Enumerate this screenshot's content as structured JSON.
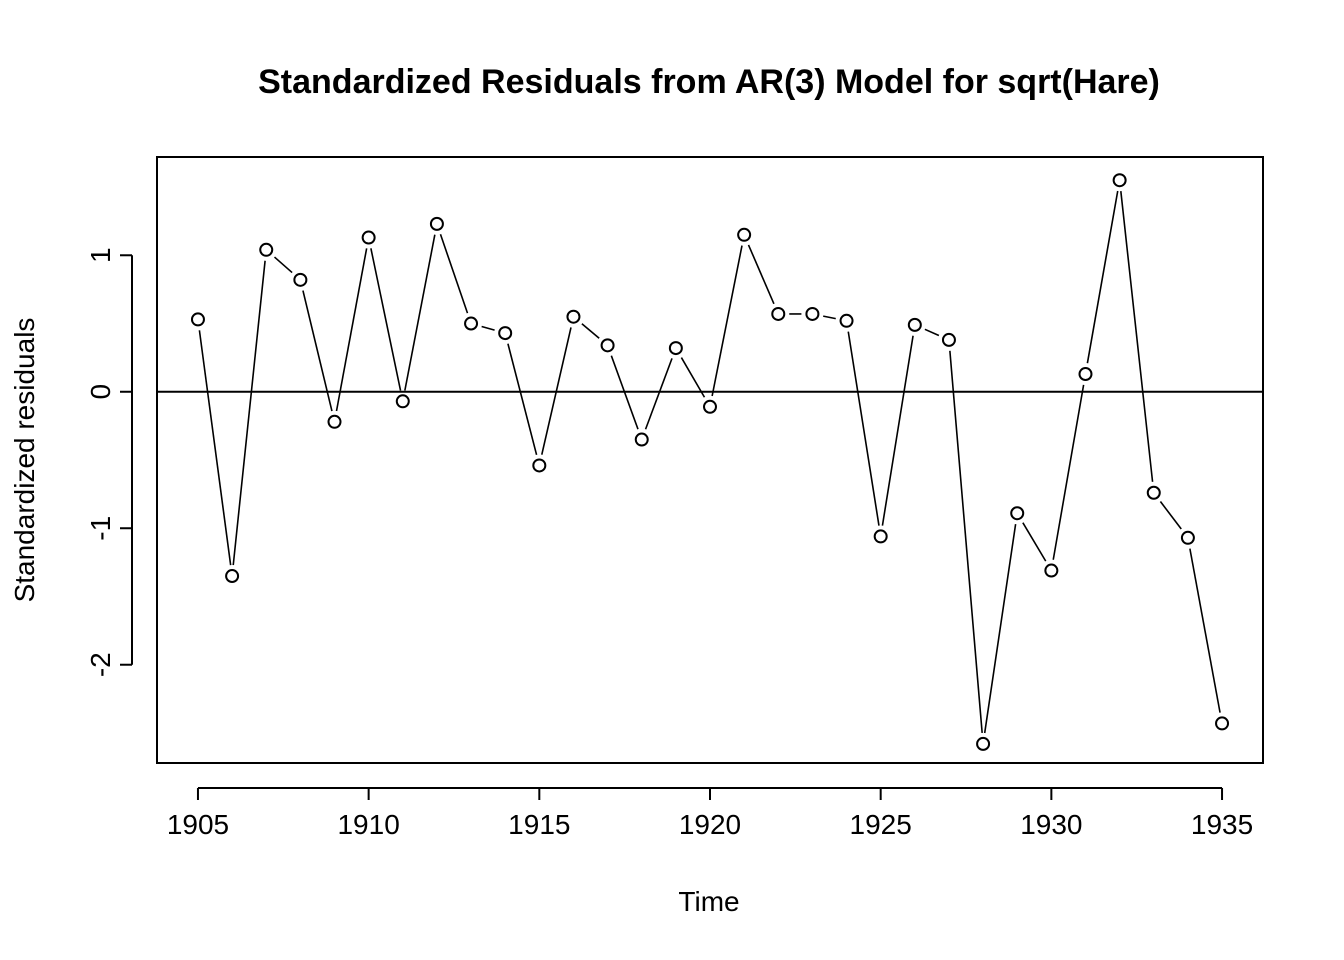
{
  "chart_data": {
    "type": "line",
    "title": "Standardized Residuals from AR(3) Model for sqrt(Hare)",
    "xlabel": "Time",
    "ylabel": "Standardized residuals",
    "x_ticks": [
      "1905",
      "1910",
      "1915",
      "1920",
      "1925",
      "1930",
      "1935"
    ],
    "y_ticks": [
      "-2",
      "-1",
      "0",
      "1"
    ],
    "xlim": [
      1903.8,
      1936.2
    ],
    "ylim": [
      -2.72,
      1.72
    ],
    "grid": false,
    "reference_line": 0,
    "marker": "open-circle",
    "line_style": "overplotted (type='o')",
    "series": [
      {
        "x": [
          1905,
          1906,
          1907,
          1908,
          1909,
          1910,
          1911,
          1912,
          1913,
          1914,
          1915,
          1916,
          1917,
          1918,
          1919,
          1920,
          1921,
          1922,
          1923,
          1924,
          1925,
          1926,
          1927,
          1928,
          1929,
          1930,
          1931,
          1932,
          1933,
          1934,
          1935
        ],
        "values": [
          0.53,
          -1.35,
          1.04,
          0.82,
          -0.22,
          1.13,
          -0.07,
          1.23,
          0.5,
          0.43,
          -0.54,
          0.55,
          0.34,
          -0.35,
          0.32,
          -0.11,
          1.15,
          0.57,
          0.57,
          0.52,
          -1.06,
          0.49,
          0.38,
          -2.58,
          -0.89,
          -1.31,
          0.13,
          1.55,
          -0.74,
          -1.07,
          -2.43
        ]
      }
    ]
  }
}
